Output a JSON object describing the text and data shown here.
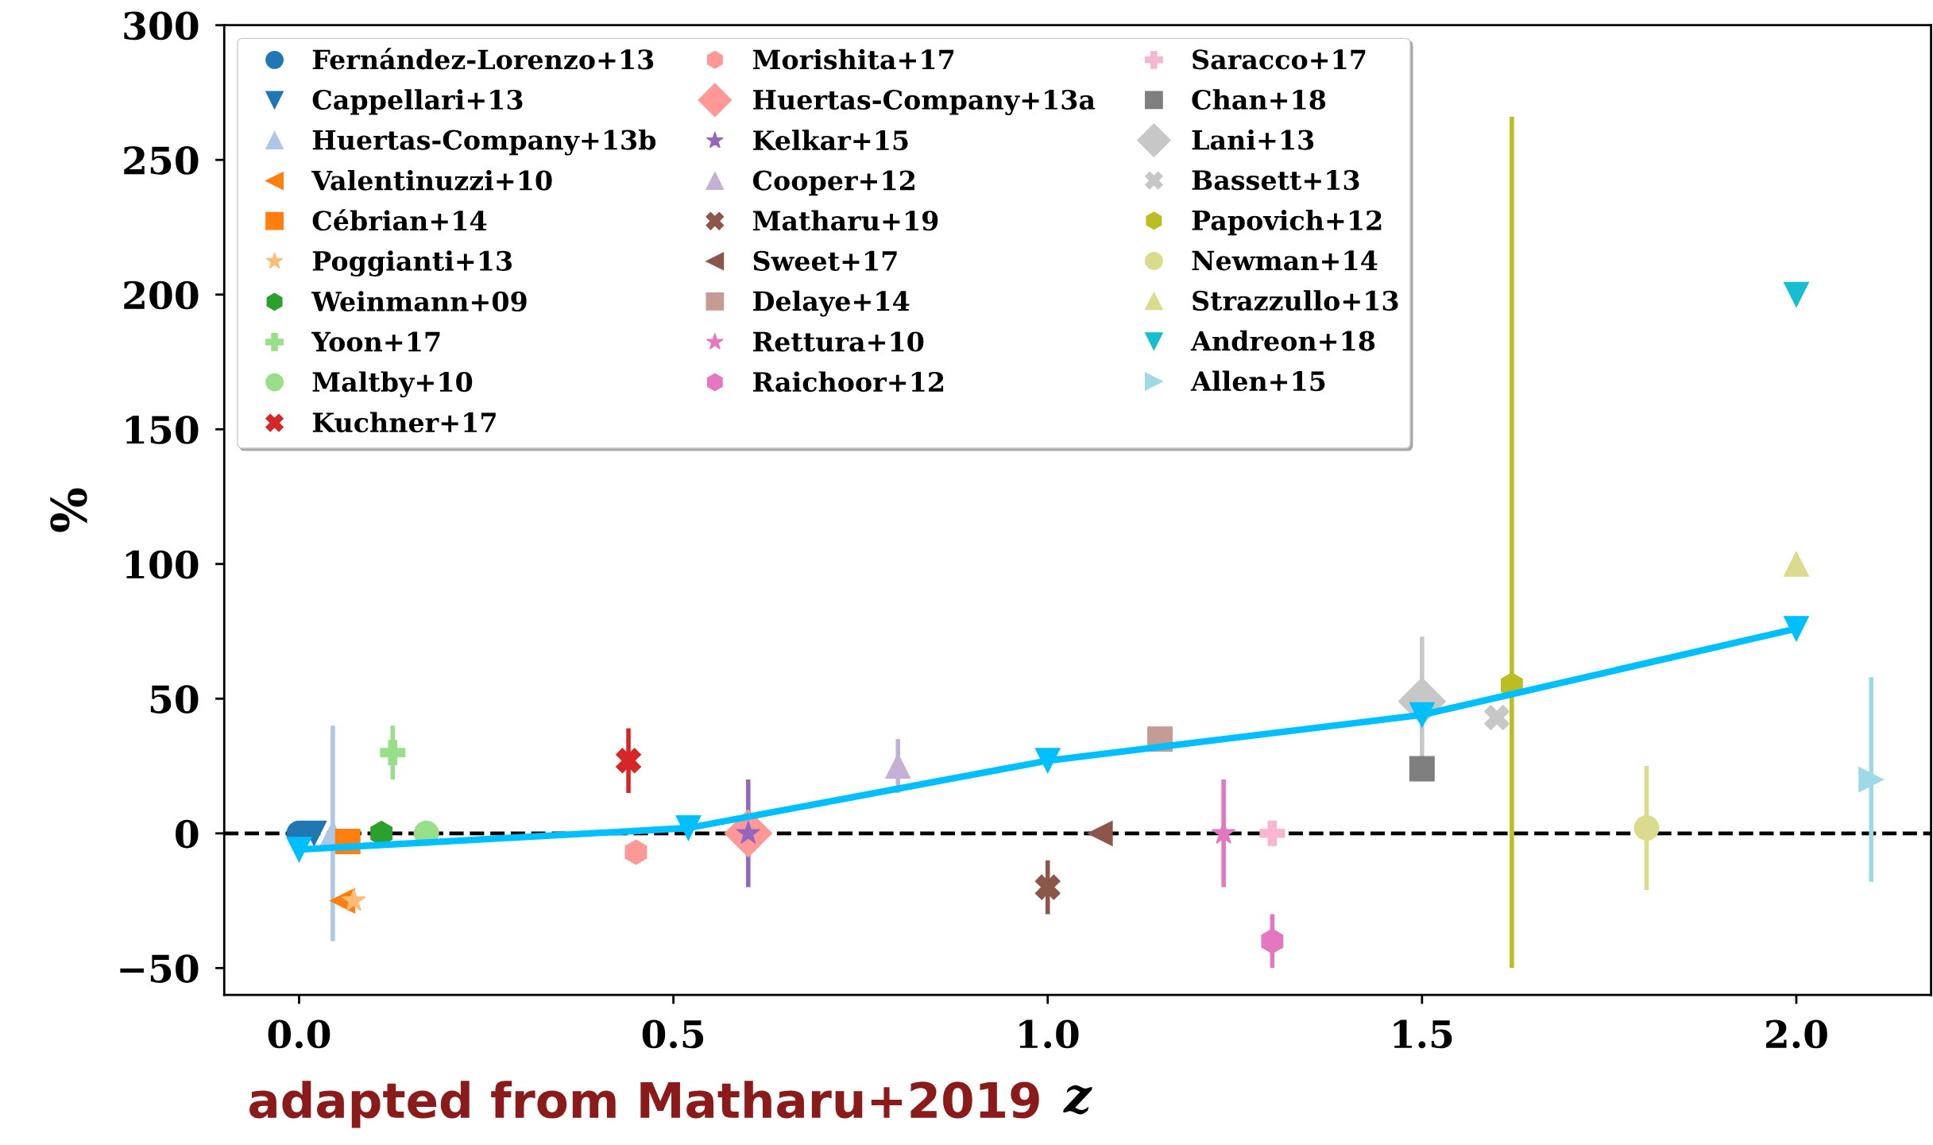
{
  "chart_data": {
    "type": "scatter",
    "xlabel": "z",
    "ylabel": "%",
    "xlim": [
      -0.1,
      2.18
    ],
    "ylim": [
      -60,
      300
    ],
    "xticks": [
      {
        "value": 0,
        "label": "0.0"
      },
      {
        "value": 0.5,
        "label": "0.5"
      },
      {
        "value": 1,
        "label": "1.0"
      },
      {
        "value": 1.5,
        "label": "1.5"
      },
      {
        "value": 2,
        "label": "2.0"
      }
    ],
    "yticks": [
      {
        "value": -50,
        "label": "−50"
      },
      0,
      50,
      100,
      150,
      200,
      250,
      300
    ],
    "grid": false,
    "legend": "top left",
    "ref_lines": [
      {
        "axis": "y",
        "value": 0,
        "color": "#000000",
        "line_style": "dashed"
      }
    ],
    "annotations": [
      "adapted from Matharu+2019"
    ],
    "series": [
      {
        "name": "Fernández-Lorenzo+13",
        "color": "#1f77b4",
        "marker": "circle",
        "x": [
          0.0
        ],
        "values": [
          0
        ]
      },
      {
        "name": "Cappellari+13",
        "color": "#1f77b4",
        "marker": "triangle_down",
        "x": [
          0.02
        ],
        "values": [
          0
        ]
      },
      {
        "name": "Huertas-Company+13b",
        "color": "#aec7e8",
        "marker": "triangle",
        "x": [
          0.045
        ],
        "values": [
          0
        ],
        "errors": [
          40
        ]
      },
      {
        "name": "Valentinuzzi+10",
        "color": "#ff7f0e",
        "marker": "triangle_left",
        "x": [
          0.058
        ],
        "values": [
          -25
        ]
      },
      {
        "name": "Cébrian+14",
        "color": "#ff7f0e",
        "marker": "square",
        "x": [
          0.065
        ],
        "values": [
          -3
        ]
      },
      {
        "name": "Poggianti+13",
        "color": "#ffbb78",
        "marker": "star",
        "x": [
          0.073
        ],
        "values": [
          -25
        ]
      },
      {
        "name": "Weinmann+09",
        "color": "#2ca02c",
        "x": [
          0.11
        ],
        "values": [
          0
        ]
      },
      {
        "name": "Yoon+17",
        "color": "#98df8a",
        "marker": "plus",
        "x": [
          0.125
        ],
        "values": [
          30
        ],
        "errors": [
          10
        ]
      },
      {
        "name": "Maltby+10",
        "color": "#98df8a",
        "marker": "circle",
        "x": [
          0.17
        ],
        "values": [
          0
        ]
      },
      {
        "name": "Kuchner+17",
        "color": "#d62728",
        "marker": "cross",
        "x": [
          0.44
        ],
        "values": [
          27
        ],
        "errors": [
          12
        ]
      },
      {
        "name": "Morishita+17",
        "color": "#ff9896",
        "x": [
          0.45
        ],
        "values": [
          -7
        ]
      },
      {
        "name": "Huertas-Company+13a",
        "color": "#ff9896",
        "marker": "diamond",
        "x": [
          0.6
        ],
        "values": [
          0
        ]
      },
      {
        "name": "Kelkar+15",
        "color": "#9467bd",
        "marker": "star",
        "x": [
          0.6
        ],
        "values": [
          0
        ],
        "errors": [
          20
        ]
      },
      {
        "name": "Cooper+12",
        "color": "#c5b0d5",
        "marker": "triangle",
        "x": [
          0.8
        ],
        "values": [
          25
        ],
        "errors": [
          10
        ]
      },
      {
        "name": "Matharu+19",
        "color": "#8c564b",
        "marker": "cross",
        "x": [
          1.0
        ],
        "values": [
          -20
        ],
        "errors": [
          10
        ]
      },
      {
        "name": "Sweet+17",
        "color": "#8c564b",
        "marker": "triangle_left",
        "x": [
          1.07
        ],
        "values": [
          0
        ]
      },
      {
        "name": "Delaye+14",
        "color": "#c49c94",
        "marker": "square",
        "x": [
          1.15
        ],
        "values": [
          35
        ],
        "errors": [
          3
        ]
      },
      {
        "name": "Rettura+10",
        "color": "#e377c2",
        "marker": "star",
        "x": [
          1.235
        ],
        "values": [
          0
        ],
        "errors": [
          20
        ]
      },
      {
        "name": "Raichoor+12",
        "color": "#e377c2",
        "x": [
          1.3
        ],
        "values": [
          -40
        ],
        "errors": [
          10
        ]
      },
      {
        "name": "Saracco+17",
        "color": "#f7b6d2",
        "marker": "plus",
        "x": [
          1.3
        ],
        "values": [
          0
        ]
      },
      {
        "name": "Chan+18",
        "color": "#7f7f7f",
        "marker": "square",
        "x": [
          1.5
        ],
        "values": [
          24
        ]
      },
      {
        "name": "Lani+13",
        "color": "#c7c7c7",
        "marker": "diamond",
        "x": [
          1.5
        ],
        "values": [
          49
        ],
        "errors": [
          24
        ]
      },
      {
        "name": "Bassett+13",
        "color": "#c7c7c7",
        "marker": "cross",
        "x": [
          1.6
        ],
        "values": [
          43
        ]
      },
      {
        "name": "Papovich+12",
        "color": "#bcbd22",
        "x": [
          1.62
        ],
        "values": [
          55
        ],
        "errors": [
          [
            -50,
            266
          ]
        ]
      },
      {
        "name": "Newman+14",
        "color": "#dbdb8d",
        "marker": "circle",
        "x": [
          1.8
        ],
        "values": [
          2
        ],
        "errors": [
          23
        ]
      },
      {
        "name": "Strazzullo+13",
        "color": "#dbdb8d",
        "marker": "triangle",
        "x": [
          2.0
        ],
        "values": [
          100
        ]
      },
      {
        "name": "Andreon+18",
        "color": "#17becf",
        "marker": "triangle_down",
        "x": [
          2.0
        ],
        "values": [
          200
        ]
      },
      {
        "name": "Allen+15",
        "color": "#9edae5",
        "marker": "triangle_right",
        "x": [
          2.1
        ],
        "values": [
          20
        ],
        "errors": [
          38
        ]
      },
      {
        "type": "line",
        "color": "#00bfff",
        "marker": "triangle_down",
        "line_style": "solid",
        "x": [
          0.0,
          0.52,
          1.0,
          1.5,
          2.0
        ],
        "values": [
          -6,
          2,
          27,
          44,
          76
        ]
      }
    ]
  }
}
